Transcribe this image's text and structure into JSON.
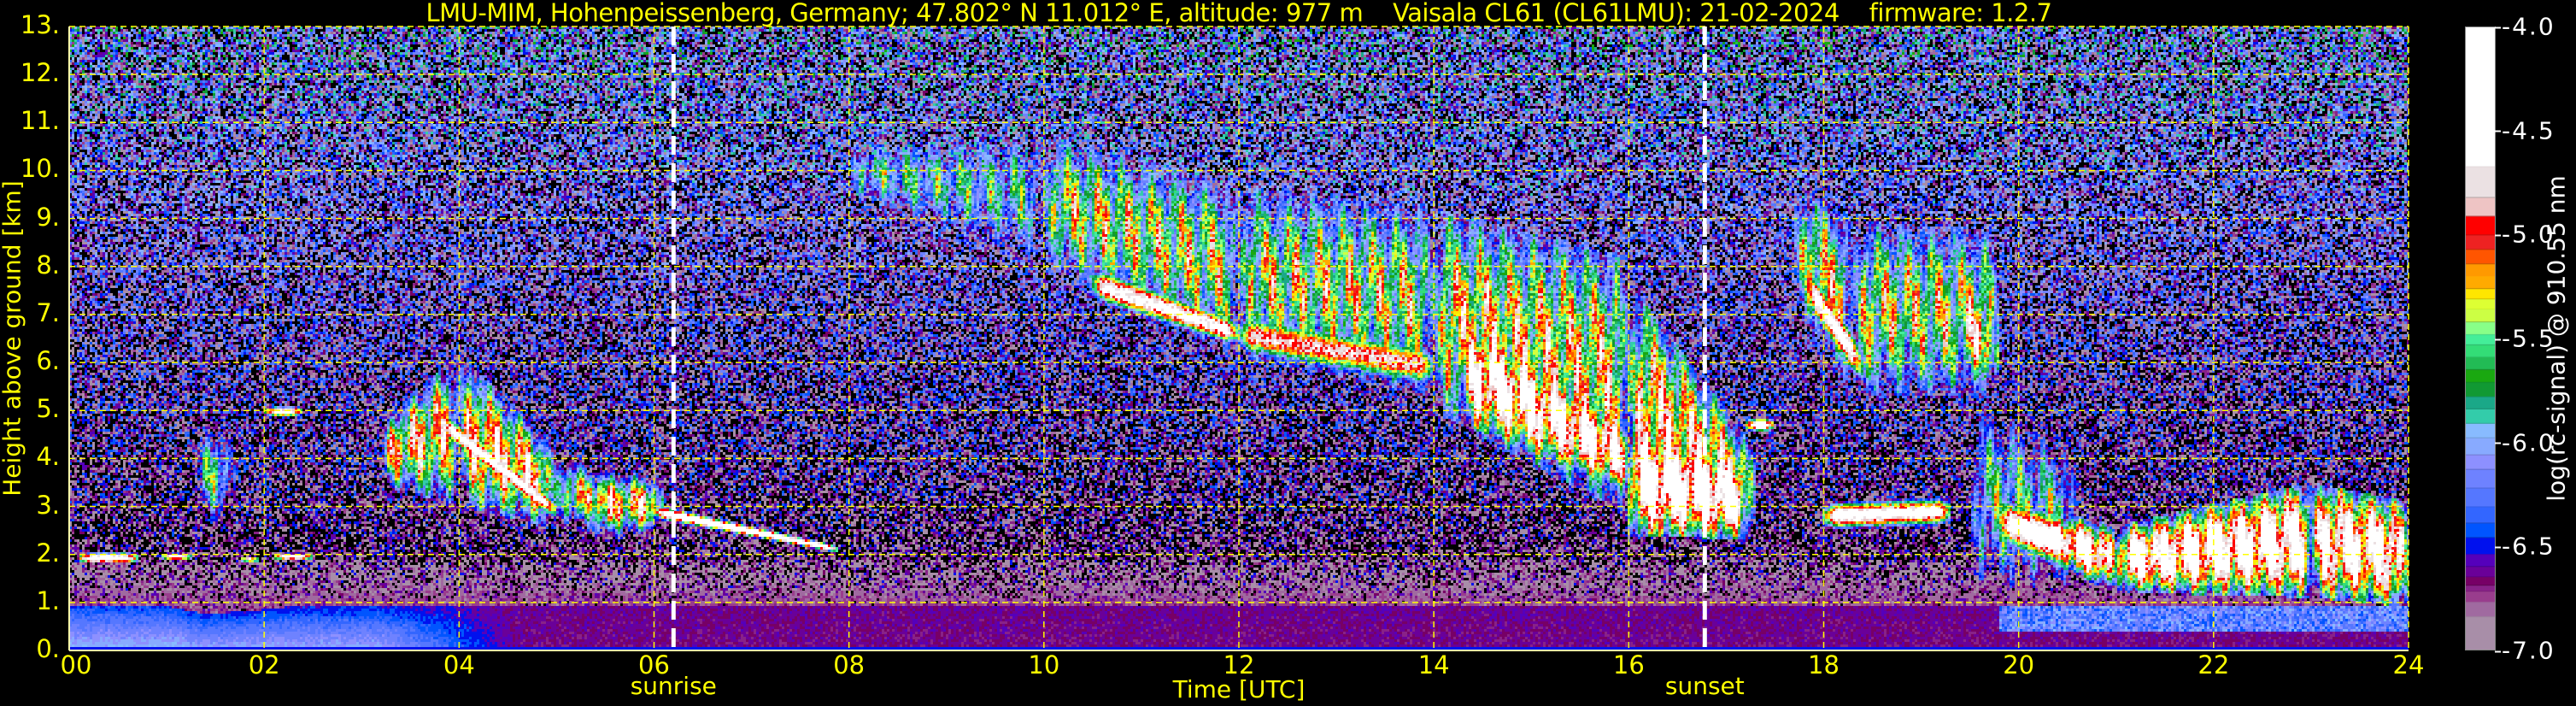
{
  "title": "LMU-MIM, Hohenpeissenberg, Germany; 47.802° N 11.012° E, altitude: 977 m    Vaisala CL61 (CL61LMU): 21-02-2024    firmware: 1.2.7",
  "chart_data": {
    "type": "heatmap",
    "xlabel": "Time [UTC]",
    "ylabel": "Height above ground [km]",
    "xlim": [
      0,
      24
    ],
    "ylim": [
      0,
      13
    ],
    "xticks": [
      "00",
      "02",
      "04",
      "06",
      "08",
      "10",
      "12",
      "14",
      "16",
      "18",
      "20",
      "22",
      "24"
    ],
    "yticks": [
      "0.",
      "1.",
      "2.",
      "3.",
      "4.",
      "5.",
      "6.",
      "7.",
      "8.",
      "9.",
      "10.",
      "11.",
      "12.",
      "13."
    ],
    "grid": true,
    "grid_color": "#ffff00",
    "annotations": [
      {
        "label": "sunrise",
        "time": 6.2
      },
      {
        "label": "sunset",
        "time": 16.78
      }
    ],
    "colorbar": {
      "label": "log(rc-signal) @ 910.55 nm",
      "min": -7.0,
      "max": -4.0,
      "ticks": [
        "-4.0",
        "-4.5",
        "-5.0",
        "-5.5",
        "-6.0",
        "-6.5",
        "-7.0"
      ],
      "levels": [
        [
          -7.0,
          "#a88ea8"
        ],
        [
          -6.84,
          "#a06aa0"
        ],
        [
          -6.77,
          "#993d8d"
        ],
        [
          -6.72,
          "#882288"
        ],
        [
          -6.69,
          "#770066"
        ],
        [
          -6.65,
          "#6a0099"
        ],
        [
          -6.6,
          "#5500bb"
        ],
        [
          -6.54,
          "#0011ee"
        ],
        [
          -6.46,
          "#0055ff"
        ],
        [
          -6.39,
          "#3366ff"
        ],
        [
          -6.31,
          "#5577ff"
        ],
        [
          -6.22,
          "#6e82ff"
        ],
        [
          -6.13,
          "#8d90ff"
        ],
        [
          -6.06,
          "#88aaff"
        ],
        [
          -5.98,
          "#88bbff"
        ],
        [
          -5.91,
          "#33ccaa"
        ],
        [
          -5.84,
          "#1aa888"
        ],
        [
          -5.78,
          "#119933"
        ],
        [
          -5.71,
          "#1aa810"
        ],
        [
          -5.65,
          "#22bb55"
        ],
        [
          -5.59,
          "#33dd77"
        ],
        [
          -5.53,
          "#44ee99"
        ],
        [
          -5.48,
          "#88ff88"
        ],
        [
          -5.42,
          "#ccff44"
        ],
        [
          -5.36,
          "#ddff33"
        ],
        [
          -5.31,
          "#ffe600"
        ],
        [
          -5.26,
          "#ffaa00"
        ],
        [
          -5.2,
          "#ff9900"
        ],
        [
          -5.14,
          "#ff5500"
        ],
        [
          -5.07,
          "#ee2222"
        ],
        [
          -5.0,
          "#ff0000"
        ],
        [
          -4.91,
          "#eec4c4"
        ],
        [
          -4.82,
          "#ebe1e3"
        ],
        [
          -4.67,
          "#ffffff"
        ]
      ]
    },
    "features": [
      {
        "t": [
          0.1,
          0.7
        ],
        "base": [
          1.85,
          1.85
        ],
        "top": [
          2.0,
          2.0
        ],
        "peak": -4.2
      },
      {
        "t": [
          0.95,
          1.25
        ],
        "base": [
          1.9,
          1.9
        ],
        "top": [
          2.0,
          2.0
        ],
        "peak": -4.3
      },
      {
        "t": [
          1.75,
          1.95
        ],
        "base": [
          1.85,
          1.85
        ],
        "top": [
          1.95,
          1.95
        ],
        "peak": -4.4
      },
      {
        "t": [
          2.1,
          2.5
        ],
        "base": [
          1.9,
          1.9
        ],
        "top": [
          2.0,
          2.0
        ],
        "peak": -4.3
      },
      {
        "t": [
          2.0,
          2.4
        ],
        "base": [
          4.9,
          4.9
        ],
        "top": [
          5.05,
          5.05
        ],
        "peak": -4.4
      },
      {
        "t": [
          1.3,
          1.7
        ],
        "base": [
          2.9,
          2.9
        ],
        "top": [
          4.5,
          4.4
        ],
        "peak": -5.6
      },
      {
        "t": [
          3.2,
          4.0
        ],
        "base": [
          3.6,
          3.2
        ],
        "top": [
          4.6,
          6.0
        ],
        "peak": -5.0
      },
      {
        "t": [
          4.0,
          5.0
        ],
        "base": [
          3.2,
          2.7
        ],
        "top": [
          6.0,
          4.0
        ],
        "peak": -4.9
      },
      {
        "t": [
          5.0,
          5.6
        ],
        "base": [
          2.7,
          2.8
        ],
        "top": [
          4.0,
          3.4
        ],
        "peak": -5.2
      },
      {
        "t": [
          3.8,
          5.0
        ],
        "base": [
          4.6,
          2.75
        ],
        "top": [
          4.95,
          3.05
        ],
        "peak": -4.4
      },
      {
        "t": [
          5.3,
          6.1
        ],
        "base": [
          2.5,
          2.6
        ],
        "top": [
          3.6,
          3.5
        ],
        "peak": -5.0
      },
      {
        "t": [
          6.0,
          7.9
        ],
        "base": [
          2.8,
          2.05
        ],
        "top": [
          3.0,
          2.15
        ],
        "peak": -4.2
      },
      {
        "t": [
          8.0,
          10.0
        ],
        "base": [
          9.5,
          8.2
        ],
        "top": [
          10.5,
          10.6
        ],
        "peak": -5.8
      },
      {
        "t": [
          10.0,
          12.0
        ],
        "base": [
          8.2,
          6.3
        ],
        "top": [
          10.6,
          9.5
        ],
        "peak": -5.3
      },
      {
        "t": [
          12.0,
          14.0
        ],
        "base": [
          6.3,
          5.5
        ],
        "top": [
          9.5,
          9.0
        ],
        "peak": -5.3
      },
      {
        "t": [
          14.0,
          16.0
        ],
        "base": [
          5.2,
          3.0
        ],
        "top": [
          9.0,
          8.0
        ],
        "peak": -5.1
      },
      {
        "t": [
          16.0,
          17.3
        ],
        "base": [
          3.0,
          2.4
        ],
        "top": [
          7.5,
          4.0
        ],
        "peak": -4.9
      },
      {
        "t": [
          10.5,
          12.0
        ],
        "base": [
          7.4,
          6.4
        ],
        "top": [
          7.9,
          6.8
        ],
        "peak": -4.5
      },
      {
        "t": [
          12.0,
          14.0
        ],
        "base": [
          6.3,
          5.6
        ],
        "top": [
          6.9,
          6.2
        ],
        "peak": -4.8
      },
      {
        "t": [
          14.3,
          16.0
        ],
        "base": [
          4.9,
          3.4
        ],
        "top": [
          6.9,
          4.6
        ],
        "peak": -4.4
      },
      {
        "t": [
          16.0,
          17.2
        ],
        "base": [
          2.6,
          2.5
        ],
        "top": [
          4.6,
          3.8
        ],
        "peak": -4.2
      },
      {
        "t": [
          17.2,
          17.5
        ],
        "base": [
          4.6,
          4.6
        ],
        "top": [
          4.8,
          4.8
        ],
        "peak": -4.2
      },
      {
        "t": [
          17.7,
          18.3
        ],
        "base": [
          7.5,
          5.5
        ],
        "top": [
          9.5,
          8.8
        ],
        "peak": -5.2
      },
      {
        "t": [
          18.3,
          19.8
        ],
        "base": [
          5.5,
          5.5
        ],
        "top": [
          8.8,
          8.5
        ],
        "peak": -5.3
      },
      {
        "t": [
          17.8,
          18.4
        ],
        "base": [
          7.4,
          5.6
        ],
        "top": [
          8.0,
          6.2
        ],
        "peak": -4.4
      },
      {
        "t": [
          19.4,
          19.8
        ],
        "base": [
          6.0,
          5.6
        ],
        "top": [
          8.2,
          6.5
        ],
        "peak": -4.8
      },
      {
        "t": [
          18.0,
          19.3
        ],
        "base": [
          2.6,
          2.7
        ],
        "top": [
          3.0,
          3.1
        ],
        "peak": -4.4
      },
      {
        "t": [
          19.5,
          20.6
        ],
        "base": [
          1.5,
          1.5
        ],
        "top": [
          5.0,
          4.0
        ],
        "peak": -5.7
      },
      {
        "t": [
          19.8,
          21.0
        ],
        "base": [
          2.4,
          1.4
        ],
        "top": [
          3.0,
          2.4
        ],
        "peak": -4.3
      },
      {
        "t": [
          21.0,
          23.0
        ],
        "base": [
          1.4,
          1.3
        ],
        "top": [
          2.4,
          3.3
        ],
        "peak": -4.3
      },
      {
        "t": [
          23.0,
          24.0
        ],
        "base": [
          1.3,
          1.1
        ],
        "top": [
          3.3,
          2.9
        ],
        "peak": -4.4
      }
    ]
  }
}
